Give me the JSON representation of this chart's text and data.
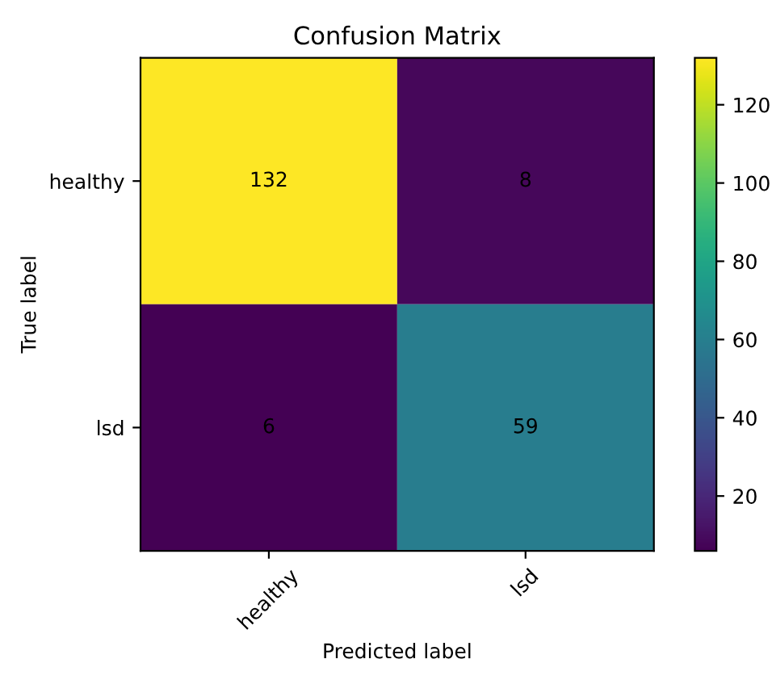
{
  "chart_data": {
    "type": "heatmap",
    "title": "Confusion Matrix",
    "xlabel": "Predicted label",
    "ylabel": "True label",
    "categories": [
      "healthy",
      "lsd"
    ],
    "y_categories": [
      "healthy",
      "lsd"
    ],
    "cells": [
      [
        132,
        8
      ],
      [
        6,
        59
      ]
    ],
    "data_labels": true,
    "clim": [
      6,
      132
    ],
    "cticks": [
      20,
      40,
      60,
      80,
      100,
      120
    ],
    "grid": false
  }
}
